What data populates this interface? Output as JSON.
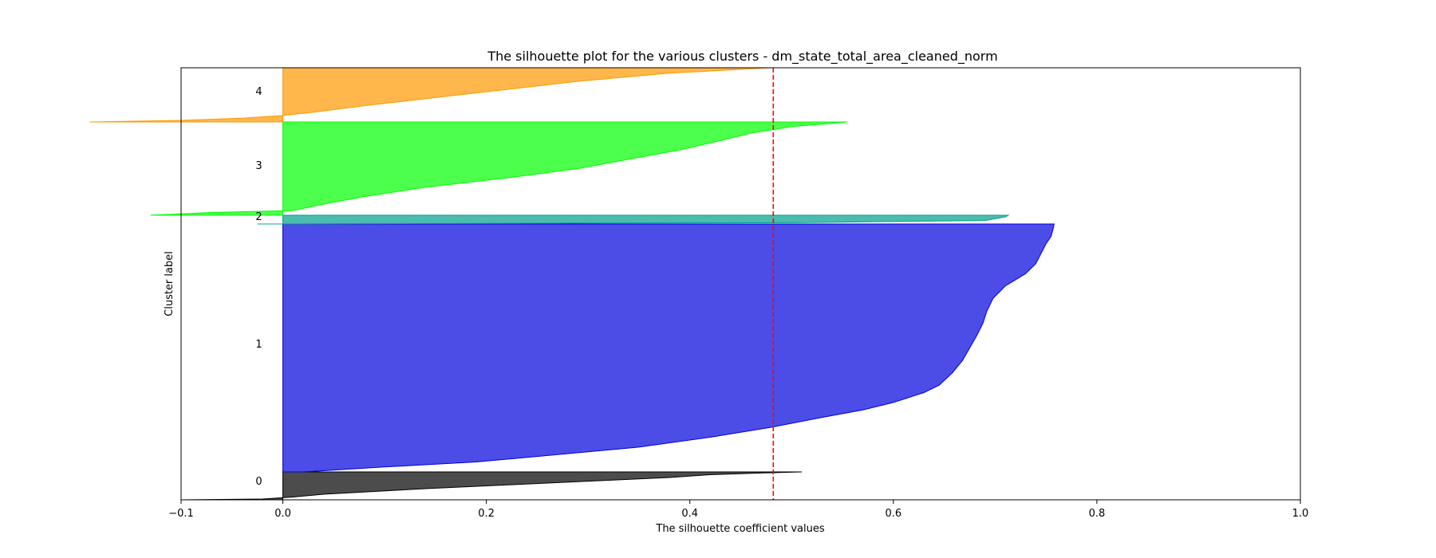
{
  "chart_data": {
    "type": "area",
    "title": "The silhouette plot for the various clusters - dm_state_total_area_cleaned_norm",
    "xlabel": "The silhouette coefficient values",
    "ylabel": "Cluster label",
    "xlim": [
      -0.1,
      1.0
    ],
    "x_ticks": [
      -0.1,
      0.0,
      0.2,
      0.4,
      0.6,
      0.8,
      1.0
    ],
    "x_tick_labels": [
      "−0.1",
      "0.0",
      "0.2",
      "0.4",
      "0.6",
      "0.8",
      "1.0"
    ],
    "average_silhouette": 0.482,
    "average_line_color": "#ff0000",
    "clusters": [
      {
        "label": "0",
        "color": "#000000",
        "profile": [
          [
            0,
            0.51
          ],
          [
            0.04,
            0.47
          ],
          [
            0.1,
            0.42
          ],
          [
            0.2,
            0.38
          ],
          [
            0.3,
            0.32
          ],
          [
            0.4,
            0.26
          ],
          [
            0.5,
            0.2
          ],
          [
            0.6,
            0.14
          ],
          [
            0.7,
            0.09
          ],
          [
            0.8,
            0.04
          ],
          [
            0.9,
            0.01
          ],
          [
            0.97,
            -0.02
          ],
          [
            1,
            -0.1
          ]
        ]
      },
      {
        "label": "1",
        "color": "#0000dd",
        "profile": [
          [
            0,
            0.758
          ],
          [
            0.02,
            0.757
          ],
          [
            0.05,
            0.755
          ],
          [
            0.08,
            0.75
          ],
          [
            0.12,
            0.745
          ],
          [
            0.16,
            0.74
          ],
          [
            0.2,
            0.73
          ],
          [
            0.25,
            0.71
          ],
          [
            0.3,
            0.698
          ],
          [
            0.35,
            0.692
          ],
          [
            0.4,
            0.688
          ],
          [
            0.45,
            0.682
          ],
          [
            0.5,
            0.675
          ],
          [
            0.55,
            0.668
          ],
          [
            0.6,
            0.658
          ],
          [
            0.65,
            0.645
          ],
          [
            0.68,
            0.63
          ],
          [
            0.72,
            0.6
          ],
          [
            0.75,
            0.57
          ],
          [
            0.78,
            0.53
          ],
          [
            0.82,
            0.48
          ],
          [
            0.86,
            0.42
          ],
          [
            0.9,
            0.35
          ],
          [
            0.93,
            0.27
          ],
          [
            0.96,
            0.19
          ],
          [
            0.98,
            0.1
          ],
          [
            1,
            0.02
          ]
        ]
      },
      {
        "label": "2",
        "color": "#00a08c",
        "profile": [
          [
            0,
            0.713
          ],
          [
            0.2,
            0.71
          ],
          [
            0.4,
            0.7
          ],
          [
            0.6,
            0.69
          ],
          [
            0.85,
            0.5
          ],
          [
            1,
            -0.025
          ]
        ]
      },
      {
        "label": "3",
        "color": "#00ff00",
        "profile": [
          [
            0,
            0.555
          ],
          [
            0.05,
            0.5
          ],
          [
            0.12,
            0.46
          ],
          [
            0.2,
            0.43
          ],
          [
            0.3,
            0.39
          ],
          [
            0.4,
            0.34
          ],
          [
            0.5,
            0.29
          ],
          [
            0.6,
            0.22
          ],
          [
            0.7,
            0.14
          ],
          [
            0.8,
            0.08
          ],
          [
            0.88,
            0.04
          ],
          [
            0.95,
            0.01
          ],
          [
            0.97,
            -0.07
          ],
          [
            1,
            -0.13
          ]
        ]
      },
      {
        "label": "4",
        "color": "#ff9900",
        "profile": [
          [
            0,
            0.48
          ],
          [
            0.1,
            0.38
          ],
          [
            0.25,
            0.29
          ],
          [
            0.4,
            0.22
          ],
          [
            0.55,
            0.15
          ],
          [
            0.7,
            0.08
          ],
          [
            0.82,
            0.03
          ],
          [
            0.88,
            0.0
          ],
          [
            0.93,
            -0.04
          ],
          [
            0.97,
            -0.1
          ],
          [
            1,
            -0.19
          ]
        ]
      }
    ],
    "grid": false,
    "legend": "none"
  }
}
